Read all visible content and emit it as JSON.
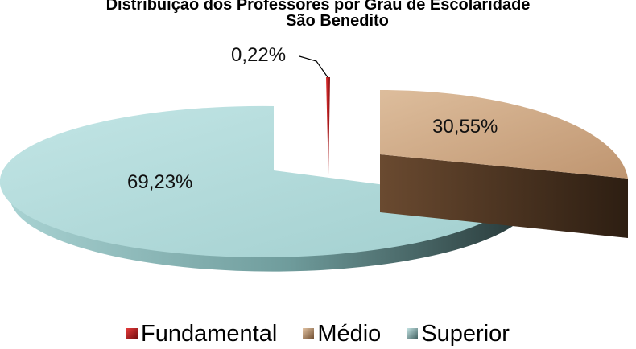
{
  "chart_data": {
    "type": "pie",
    "title": "Distribuição dos Professores por Grau de Escolaridade",
    "subtitle": "São Benedito",
    "legend_position": "bottom",
    "slices": [
      {
        "name": "Fundamental",
        "value": 0.22,
        "label": "0,22%",
        "color": "#c0202a"
      },
      {
        "name": "Médio",
        "value": 30.55,
        "label": "30,55%",
        "color": "#c9a27e"
      },
      {
        "name": "Superior",
        "value": 69.23,
        "label": "69,23%",
        "color": "#a8d3d3"
      }
    ]
  }
}
